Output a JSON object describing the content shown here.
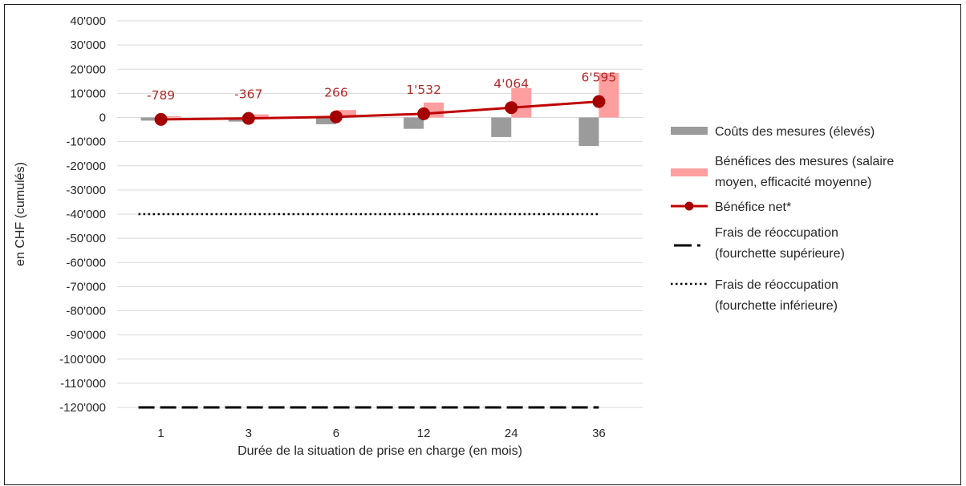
{
  "chart_data": {
    "type": "bar",
    "categories": [
      "1",
      "3",
      "6",
      "12",
      "24",
      "36"
    ],
    "xlabel": "Durée de la situation de prise en charge (en mois)",
    "ylabel": "en CHF (cumulés)",
    "ylim": [
      -120000,
      40000
    ],
    "yticks": [
      40000,
      30000,
      20000,
      10000,
      0,
      -10000,
      -20000,
      -30000,
      -40000,
      -50000,
      -60000,
      -70000,
      -80000,
      -90000,
      -100000,
      -110000,
      -120000
    ],
    "ytick_labels": [
      "40'000",
      "30'000",
      "20'000",
      "10'000",
      "0",
      "-10'000",
      "-20'000",
      "-30'000",
      "-40'000",
      "-50'000",
      "-60'000",
      "-70'000",
      "-80'000",
      "-90'000",
      "-100'000",
      "-110'000",
      "-120'000"
    ],
    "grid": true,
    "legend_position": "right",
    "series": [
      {
        "name": "Coûts des mesures (élevés)",
        "kind": "bar",
        "color": "#9b9b9b",
        "values": [
          -1300,
          -1700,
          -2800,
          -4700,
          -8100,
          -11800
        ]
      },
      {
        "name": "Bénéfices des mesures (salaire moyen, efficacité moyenne)",
        "kind": "bar",
        "color": "#ff9e9e",
        "values": [
          500,
          1300,
          3100,
          6200,
          12200,
          18400
        ]
      },
      {
        "name": "Bénéfice net*",
        "kind": "line",
        "color": "#c00000",
        "values": [
          -789,
          -367,
          266,
          1532,
          4064,
          6595
        ],
        "labels": [
          "-789",
          "-367",
          "266",
          "1'532",
          "4'064",
          "6'595"
        ]
      },
      {
        "name": "Frais de réoccupation (fourchette supérieure)",
        "kind": "dashed-line",
        "color": "#000000",
        "values": [
          -120000,
          -120000,
          -120000,
          -120000,
          -120000,
          -120000
        ]
      },
      {
        "name": "Frais de réoccupation (fourchette inférieure)",
        "kind": "dotted-line",
        "color": "#000000",
        "values": [
          -40000,
          -40000,
          -40000,
          -40000,
          -40000,
          -40000
        ]
      }
    ],
    "legend": [
      {
        "lines": [
          "Coûts des mesures (élevés)"
        ]
      },
      {
        "lines": [
          "Bénéfices des mesures (salaire",
          "moyen, efficacité moyenne)"
        ]
      },
      {
        "lines": [
          "Bénéfice net*"
        ]
      },
      {
        "lines": [
          "Frais de réoccupation",
          "(fourchette supérieure)"
        ]
      },
      {
        "lines": [
          "Frais de réoccupation",
          "(fourchette inférieure)"
        ]
      }
    ]
  }
}
